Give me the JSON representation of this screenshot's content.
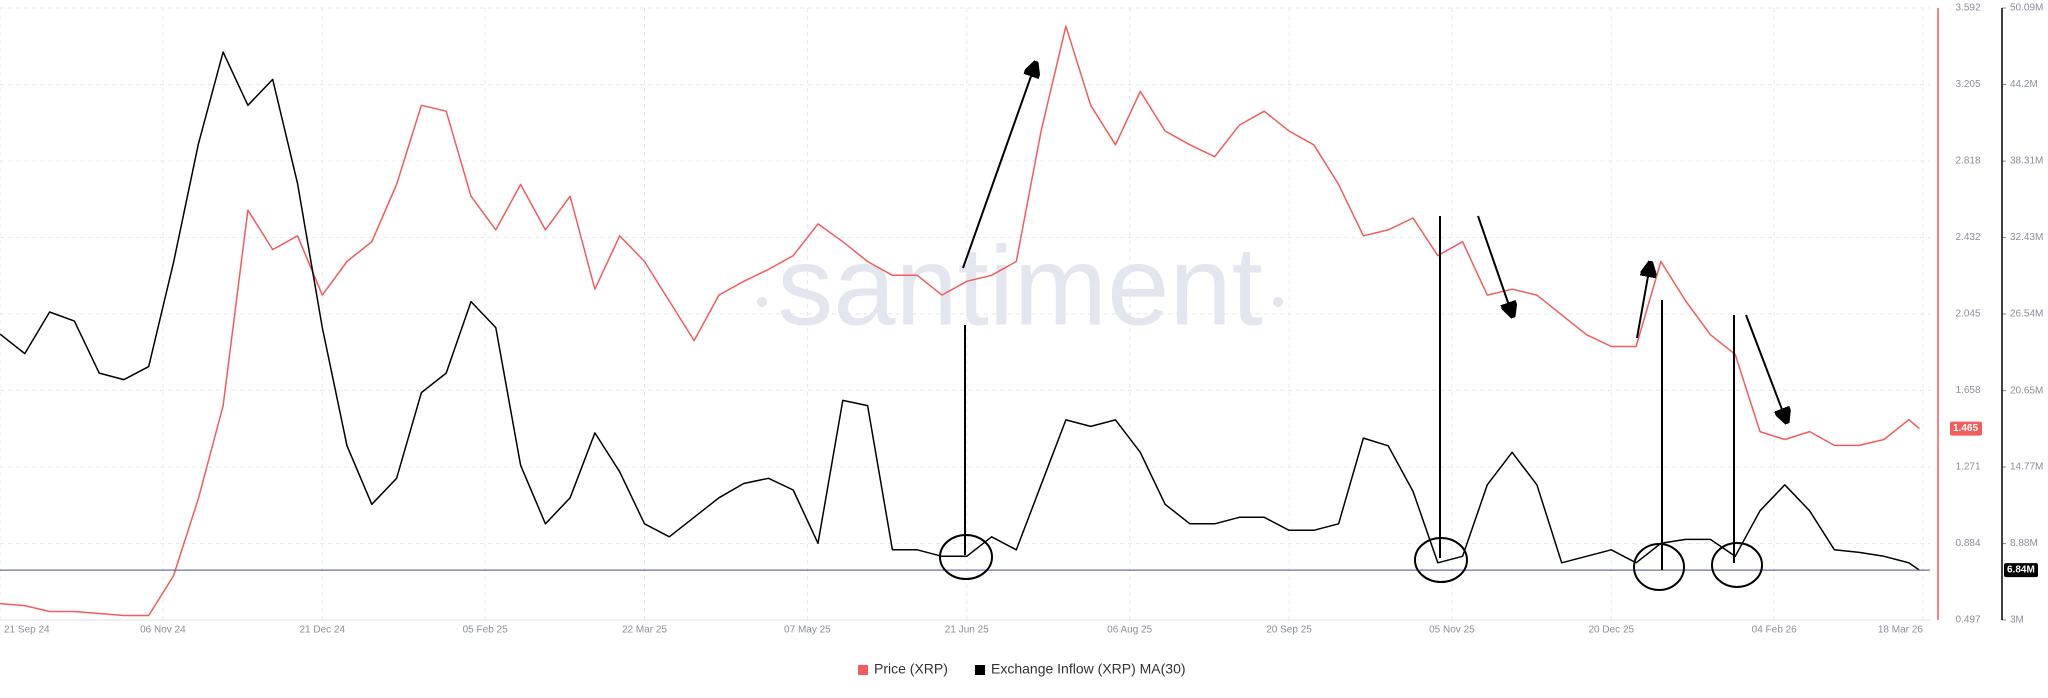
{
  "chart_data": {
    "type": "line",
    "watermark": "santiment",
    "x": [
      "2024-09-21",
      "2024-09-28",
      "2024-10-05",
      "2024-10-12",
      "2024-10-19",
      "2024-10-26",
      "2024-11-02",
      "2024-11-09",
      "2024-11-16",
      "2024-11-23",
      "2024-11-30",
      "2024-12-07",
      "2024-12-14",
      "2024-12-21",
      "2024-12-28",
      "2025-01-04",
      "2025-01-11",
      "2025-01-18",
      "2025-01-25",
      "2025-02-01",
      "2025-02-08",
      "2025-02-15",
      "2025-02-22",
      "2025-03-01",
      "2025-03-08",
      "2025-03-15",
      "2025-03-22",
      "2025-03-29",
      "2025-04-05",
      "2025-04-12",
      "2025-04-19",
      "2025-04-26",
      "2025-05-03",
      "2025-05-10",
      "2025-05-17",
      "2025-05-24",
      "2025-05-31",
      "2025-06-07",
      "2025-06-14",
      "2025-06-21",
      "2025-06-28",
      "2025-07-05",
      "2025-07-12",
      "2025-07-19",
      "2025-07-26",
      "2025-08-02",
      "2025-08-09",
      "2025-08-16",
      "2025-08-23",
      "2025-08-30",
      "2025-09-06",
      "2025-09-13",
      "2025-09-20",
      "2025-09-27",
      "2025-10-04",
      "2025-10-11",
      "2025-10-18",
      "2025-10-25",
      "2025-11-01",
      "2025-11-08",
      "2025-11-15",
      "2025-11-22",
      "2025-11-29",
      "2025-12-06",
      "2025-12-13",
      "2025-12-20",
      "2025-12-27",
      "2026-01-03",
      "2026-01-10",
      "2026-01-17",
      "2026-01-24",
      "2026-01-31",
      "2026-02-07",
      "2026-02-14",
      "2026-02-21",
      "2026-02-28",
      "2026-03-07",
      "2026-03-14",
      "2026-03-17"
    ],
    "xlim": [
      "2024-09-21",
      "2026-03-20"
    ],
    "xticks": [
      {
        "value": "2024-09-21",
        "label": "21 Sep 24"
      },
      {
        "value": "2024-11-06",
        "label": "06 Nov 24"
      },
      {
        "value": "2024-12-21",
        "label": "21 Dec 24"
      },
      {
        "value": "2025-02-05",
        "label": "05 Feb 25"
      },
      {
        "value": "2025-03-22",
        "label": "22 Mar 25"
      },
      {
        "value": "2025-05-07",
        "label": "07 May 25"
      },
      {
        "value": "2025-06-21",
        "label": "21 Jun 25"
      },
      {
        "value": "2025-08-06",
        "label": "06 Aug 25"
      },
      {
        "value": "2025-09-20",
        "label": "20 Sep 25"
      },
      {
        "value": "2025-11-05",
        "label": "05 Nov 25"
      },
      {
        "value": "2025-12-20",
        "label": "20 Dec 25"
      },
      {
        "value": "2026-02-04",
        "label": "04 Feb 26"
      },
      {
        "value": "2026-03-18",
        "label": "18 Mar 26"
      }
    ],
    "ylim": [
      0.497,
      3.592
    ],
    "yticks": [
      0.497,
      0.884,
      1.271,
      1.658,
      2.045,
      2.432,
      2.818,
      3.205,
      3.592
    ],
    "y2lim": [
      3000000,
      50090000
    ],
    "y2ticks": [
      {
        "value": 3000000,
        "label": "3M"
      },
      {
        "value": 8880000,
        "label": "8.88M"
      },
      {
        "value": 14770000,
        "label": "14.77M"
      },
      {
        "value": 20650000,
        "label": "20.65M"
      },
      {
        "value": 26540000,
        "label": "26.54M"
      },
      {
        "value": 32430000,
        "label": "32.43M"
      },
      {
        "value": 38310000,
        "label": "38.31M"
      },
      {
        "value": 44200000,
        "label": "44.2M"
      },
      {
        "value": 50090000,
        "label": "50.09M"
      }
    ],
    "grid": true,
    "legend": "bottom",
    "series": [
      {
        "name": "Price (XRP)",
        "color": "#f25c5c",
        "current_label": "1.465",
        "values": [
          0.58,
          0.57,
          0.54,
          0.54,
          0.53,
          0.52,
          0.52,
          0.72,
          1.11,
          1.58,
          2.57,
          2.37,
          2.44,
          2.14,
          2.31,
          2.41,
          2.7,
          3.1,
          3.07,
          2.64,
          2.47,
          2.7,
          2.47,
          2.64,
          2.17,
          2.44,
          2.31,
          2.11,
          1.91,
          2.14,
          2.21,
          2.27,
          2.34,
          2.5,
          2.41,
          2.31,
          2.24,
          2.24,
          2.14,
          2.21,
          2.24,
          2.31,
          2.97,
          3.5,
          3.1,
          2.9,
          3.17,
          2.97,
          2.9,
          2.84,
          3.0,
          3.07,
          2.97,
          2.9,
          2.7,
          2.44,
          2.47,
          2.53,
          2.34,
          2.41,
          2.14,
          2.17,
          2.14,
          2.04,
          1.94,
          1.88,
          1.88,
          2.31,
          2.11,
          1.94,
          1.84,
          1.45,
          1.41,
          1.45,
          1.38,
          1.38,
          1.41,
          1.51,
          1.465
        ]
      },
      {
        "name": "Exchange Inflow (XRP) MA(30)",
        "color": "#000000",
        "axis": "y2",
        "current_label": "6.84M",
        "values": [
          25000000,
          23500000,
          26700000,
          26000000,
          22000000,
          21500000,
          22500000,
          30500000,
          39600000,
          46700000,
          42600000,
          44600000,
          36600000,
          25500000,
          16400000,
          11900000,
          13900000,
          20500000,
          22000000,
          27500000,
          25500000,
          14900000,
          10400000,
          12400000,
          17400000,
          14400000,
          10400000,
          9400000,
          10900000,
          12400000,
          13500000,
          13900000,
          13000000,
          8900000,
          19900000,
          19500000,
          8400000,
          8400000,
          7900000,
          7900000,
          9400000,
          8400000,
          13400000,
          18400000,
          17900000,
          18400000,
          15900000,
          11900000,
          10400000,
          10400000,
          10900000,
          10900000,
          9900000,
          9900000,
          10400000,
          17000000,
          16400000,
          12900000,
          7400000,
          7900000,
          13400000,
          15900000,
          13400000,
          7400000,
          7900000,
          8400000,
          7400000,
          8900000,
          9200000,
          9200000,
          7900000,
          11400000,
          13400000,
          11400000,
          8400000,
          8200000,
          7900000,
          7400000,
          6840000
        ]
      }
    ]
  }
}
